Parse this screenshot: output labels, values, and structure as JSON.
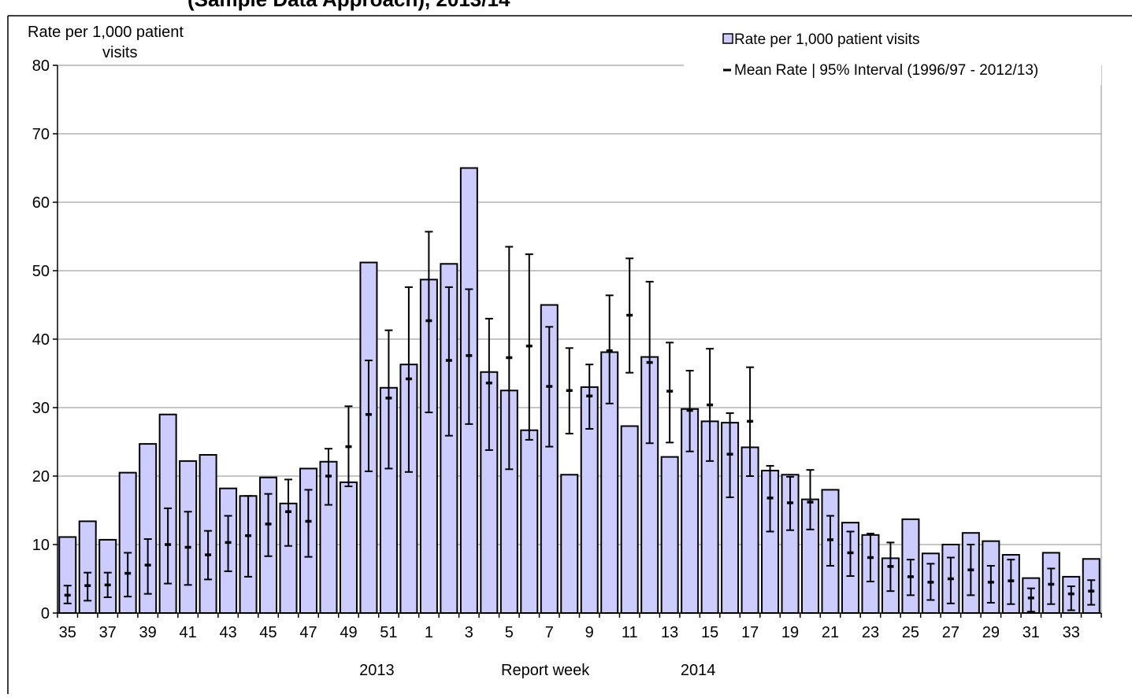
{
  "header_text": "(Sample Data Approach), 2013/14",
  "chart_data": {
    "type": "bar",
    "ylabel_line1": "Rate per 1,000  patient",
    "ylabel_line2": "visits",
    "xlabel": "Report week",
    "ylim": [
      0,
      80
    ],
    "yticks": [
      0,
      10,
      20,
      30,
      40,
      50,
      60,
      70,
      80
    ],
    "grid": true,
    "legend_position": "top-right",
    "bar_color": "#ccccff",
    "categories": [
      "35",
      "36",
      "37",
      "38",
      "39",
      "40",
      "41",
      "42",
      "43",
      "44",
      "45",
      "46",
      "47",
      "48",
      "49",
      "50",
      "51",
      "52",
      "1",
      "2",
      "3",
      "4",
      "5",
      "6",
      "7",
      "8",
      "9",
      "10",
      "11",
      "12",
      "13",
      "14",
      "15",
      "16",
      "17",
      "18",
      "19",
      "20",
      "21",
      "22",
      "23",
      "24",
      "25",
      "26",
      "27",
      "28",
      "29",
      "30",
      "31",
      "32",
      "33",
      "34"
    ],
    "tick_labels_shown": [
      "35",
      "37",
      "39",
      "41",
      "43",
      "45",
      "47",
      "49",
      "51",
      "1",
      "3",
      "5",
      "7",
      "9",
      "11",
      "13",
      "15",
      "17",
      "19",
      "21",
      "23",
      "25",
      "27",
      "29",
      "31",
      "33"
    ],
    "year_labels": [
      {
        "text": "2013",
        "at_category": "51"
      },
      {
        "text": "2014",
        "at_category": "15"
      }
    ],
    "series": [
      {
        "name": "Rate per 1,000 patient visits",
        "type": "bar",
        "values": [
          11.1,
          13.4,
          10.7,
          20.5,
          24.7,
          29.0,
          22.2,
          23.1,
          18.2,
          17.1,
          19.8,
          16.0,
          21.1,
          22.1,
          19.1,
          51.2,
          32.9,
          36.3,
          48.7,
          51.0,
          65.0,
          35.2,
          32.5,
          26.7,
          45.0,
          20.2,
          33.0,
          38.1,
          27.3,
          37.4,
          22.8,
          29.8,
          28.0,
          27.8,
          24.2,
          20.8,
          20.2,
          16.6,
          18.0,
          13.2,
          11.4,
          8.0,
          13.7,
          8.7,
          10.0,
          11.7,
          10.5,
          8.5,
          5.1,
          8.8,
          5.3,
          7.9
        ]
      },
      {
        "name": "Mean Rate | 95% Interval (1996/97 - 2012/13)",
        "type": "errorbar",
        "mean": [
          2.6,
          4.0,
          4.1,
          5.8,
          7.0,
          10.0,
          9.6,
          8.5,
          10.3,
          11.3,
          13.0,
          14.8,
          13.4,
          20.0,
          24.3,
          29.0,
          31.4,
          34.2,
          42.7,
          36.9,
          37.6,
          33.6,
          37.3,
          39.0,
          33.1,
          32.5,
          31.7,
          38.3,
          43.5,
          36.6,
          32.4,
          29.6,
          30.4,
          23.2,
          28.0,
          16.8,
          16.1,
          16.2,
          10.7,
          8.8,
          8.1,
          6.8,
          5.3,
          4.5,
          5.0,
          6.3,
          4.5,
          4.7,
          2.2,
          4.2,
          2.8,
          3.2
        ],
        "lower": [
          1.4,
          1.8,
          2.3,
          2.4,
          2.8,
          4.3,
          4.1,
          4.9,
          6.1,
          5.3,
          8.3,
          9.8,
          8.2,
          15.8,
          18.5,
          20.7,
          21.1,
          20.6,
          29.3,
          25.9,
          27.6,
          23.8,
          21.0,
          25.3,
          24.3,
          26.2,
          26.9,
          30.6,
          35.1,
          24.8,
          24.9,
          23.6,
          22.2,
          16.9,
          20.0,
          11.9,
          12.1,
          12.2,
          6.9,
          5.4,
          4.6,
          3.2,
          2.6,
          1.9,
          1.4,
          2.6,
          1.5,
          1.3,
          0.2,
          1.3,
          0.4,
          1.2
        ],
        "upper": [
          4.0,
          5.9,
          5.9,
          8.8,
          10.8,
          15.3,
          14.8,
          12.0,
          14.2,
          17.1,
          17.4,
          19.5,
          18.0,
          24.0,
          30.2,
          36.9,
          41.3,
          47.6,
          55.7,
          47.6,
          47.3,
          43.0,
          53.5,
          52.4,
          41.8,
          38.7,
          36.3,
          46.4,
          51.8,
          48.4,
          39.5,
          35.4,
          38.6,
          29.2,
          35.9,
          21.5,
          19.9,
          20.9,
          14.2,
          11.9,
          11.6,
          10.3,
          7.8,
          7.2,
          8.1,
          10.0,
          6.9,
          7.8,
          3.6,
          6.5,
          3.9,
          4.8
        ]
      }
    ]
  }
}
